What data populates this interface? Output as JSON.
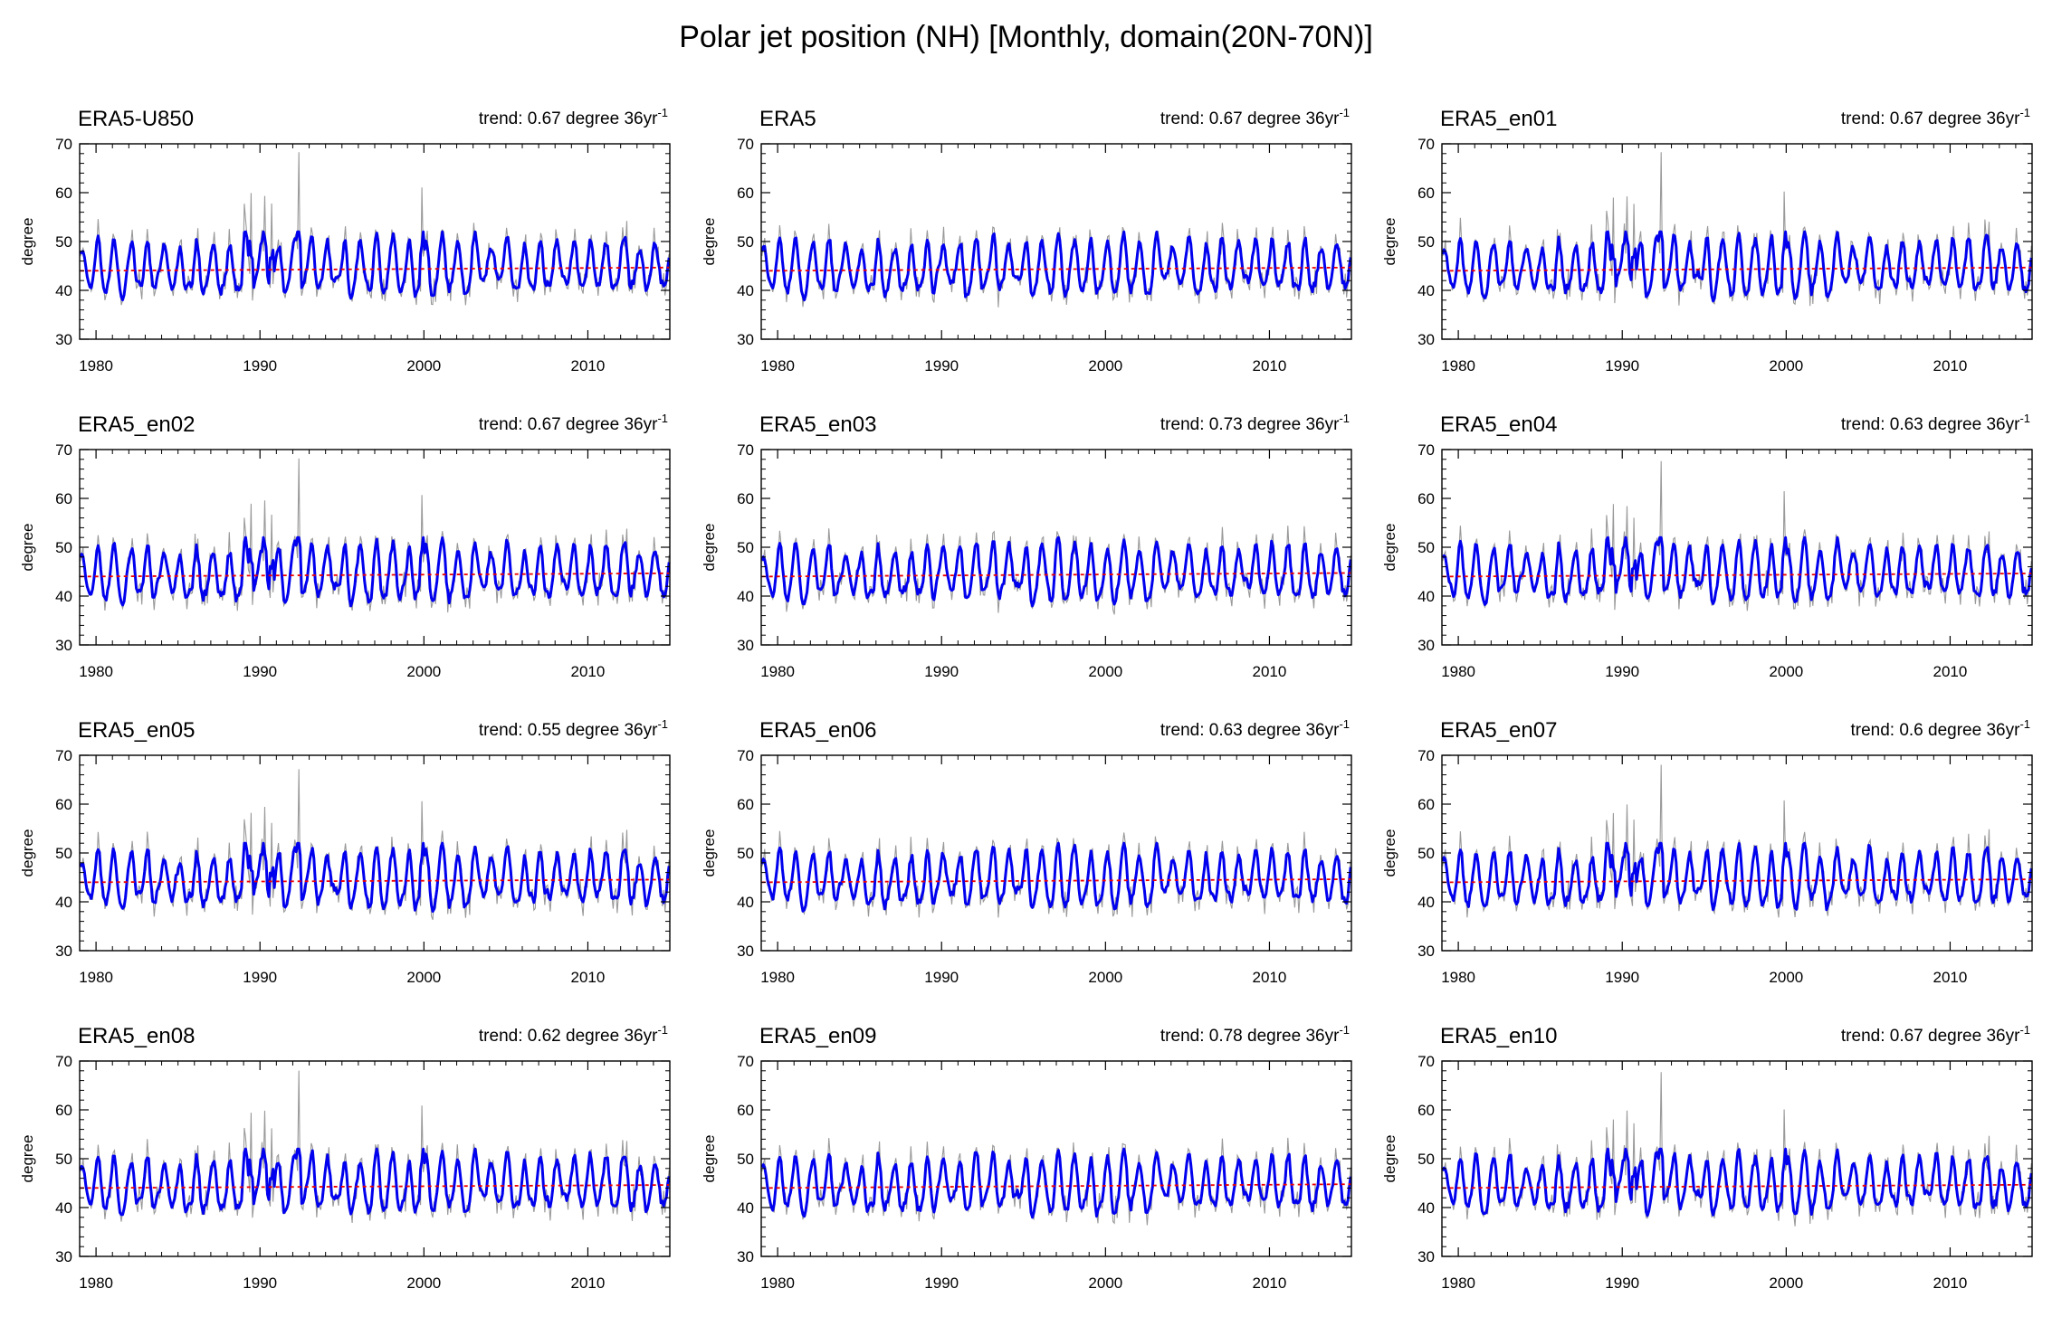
{
  "title": "Polar jet position (NH) [Monthly, domain(20N-70N)]",
  "colors": {
    "monthly": "#999999",
    "smoothed": "#0000ee",
    "trend_line": "#ee0000",
    "axes": "#000000"
  },
  "chart_data": [
    {
      "type": "line",
      "title": "ERA5-U850",
      "trend_label": "trend: 0.67 degree 36yr",
      "trend_exponent": "-1",
      "ylabel": "degree",
      "xlim": [
        1979,
        2015
      ],
      "ylim": [
        30,
        70
      ],
      "xticks": [
        1980,
        1990,
        2000,
        2010
      ],
      "yticks": [
        30,
        40,
        50,
        60,
        70
      ],
      "trend": 0.67,
      "seed": 1,
      "series": [
        {
          "name": ""
        }
      ]
    },
    {
      "type": "line",
      "title": "ERA5",
      "trend_label": "trend: 0.67 degree 36yr",
      "trend_exponent": "-1",
      "ylabel": "degree",
      "xlim": [
        1979,
        2015
      ],
      "ylim": [
        30,
        70
      ],
      "xticks": [
        1980,
        1990,
        2000,
        2010
      ],
      "yticks": [
        30,
        40,
        50,
        60,
        70
      ],
      "trend": 0.67,
      "seed": 2,
      "series": [
        {
          "name": ""
        }
      ]
    },
    {
      "type": "line",
      "title": "ERA5_en01",
      "trend_label": "trend: 0.67 degree 36yr",
      "trend_exponent": "-1",
      "ylabel": "degree",
      "xlim": [
        1979,
        2015
      ],
      "ylim": [
        30,
        70
      ],
      "xticks": [
        1980,
        1990,
        2000,
        2010
      ],
      "yticks": [
        30,
        40,
        50,
        60,
        70
      ],
      "trend": 0.67,
      "seed": 3,
      "series": [
        {
          "name": ""
        }
      ]
    },
    {
      "type": "line",
      "title": "ERA5_en02",
      "trend_label": "trend: 0.67 degree 36yr",
      "trend_exponent": "-1",
      "ylabel": "degree",
      "xlim": [
        1979,
        2015
      ],
      "ylim": [
        30,
        70
      ],
      "xticks": [
        1980,
        1990,
        2000,
        2010
      ],
      "yticks": [
        30,
        40,
        50,
        60,
        70
      ],
      "trend": 0.67,
      "seed": 4,
      "series": [
        {
          "name": ""
        }
      ]
    },
    {
      "type": "line",
      "title": "ERA5_en03",
      "trend_label": "trend: 0.73 degree 36yr",
      "trend_exponent": "-1",
      "ylabel": "degree",
      "xlim": [
        1979,
        2015
      ],
      "ylim": [
        30,
        70
      ],
      "xticks": [
        1980,
        1990,
        2000,
        2010
      ],
      "yticks": [
        30,
        40,
        50,
        60,
        70
      ],
      "trend": 0.73,
      "seed": 5,
      "series": [
        {
          "name": ""
        }
      ]
    },
    {
      "type": "line",
      "title": "ERA5_en04",
      "trend_label": "trend: 0.63 degree 36yr",
      "trend_exponent": "-1",
      "ylabel": "degree",
      "xlim": [
        1979,
        2015
      ],
      "ylim": [
        30,
        70
      ],
      "xticks": [
        1980,
        1990,
        2000,
        2010
      ],
      "yticks": [
        30,
        40,
        50,
        60,
        70
      ],
      "trend": 0.63,
      "seed": 6,
      "series": [
        {
          "name": ""
        }
      ]
    },
    {
      "type": "line",
      "title": "ERA5_en05",
      "trend_label": "trend: 0.55 degree 36yr",
      "trend_exponent": "-1",
      "ylabel": "degree",
      "xlim": [
        1979,
        2015
      ],
      "ylim": [
        30,
        70
      ],
      "xticks": [
        1980,
        1990,
        2000,
        2010
      ],
      "yticks": [
        30,
        40,
        50,
        60,
        70
      ],
      "trend": 0.55,
      "seed": 7,
      "series": [
        {
          "name": ""
        }
      ]
    },
    {
      "type": "line",
      "title": "ERA5_en06",
      "trend_label": "trend: 0.63 degree 36yr",
      "trend_exponent": "-1",
      "ylabel": "degree",
      "xlim": [
        1979,
        2015
      ],
      "ylim": [
        30,
        70
      ],
      "xticks": [
        1980,
        1990,
        2000,
        2010
      ],
      "yticks": [
        30,
        40,
        50,
        60,
        70
      ],
      "trend": 0.63,
      "seed": 8,
      "series": [
        {
          "name": ""
        }
      ]
    },
    {
      "type": "line",
      "title": "ERA5_en07",
      "trend_label": "trend: 0.6 degree 36yr",
      "trend_exponent": "-1",
      "ylabel": "degree",
      "xlim": [
        1979,
        2015
      ],
      "ylim": [
        30,
        70
      ],
      "xticks": [
        1980,
        1990,
        2000,
        2010
      ],
      "yticks": [
        30,
        40,
        50,
        60,
        70
      ],
      "trend": 0.6,
      "seed": 9,
      "series": [
        {
          "name": ""
        }
      ]
    },
    {
      "type": "line",
      "title": "ERA5_en08",
      "trend_label": "trend: 0.62 degree 36yr",
      "trend_exponent": "-1",
      "ylabel": "degree",
      "xlim": [
        1979,
        2015
      ],
      "ylim": [
        30,
        70
      ],
      "xticks": [
        1980,
        1990,
        2000,
        2010
      ],
      "yticks": [
        30,
        40,
        50,
        60,
        70
      ],
      "trend": 0.62,
      "seed": 10,
      "series": [
        {
          "name": ""
        }
      ]
    },
    {
      "type": "line",
      "title": "ERA5_en09",
      "trend_label": "trend: 0.78 degree 36yr",
      "trend_exponent": "-1",
      "ylabel": "degree",
      "xlim": [
        1979,
        2015
      ],
      "ylim": [
        30,
        70
      ],
      "xticks": [
        1980,
        1990,
        2000,
        2010
      ],
      "yticks": [
        30,
        40,
        50,
        60,
        70
      ],
      "trend": 0.78,
      "seed": 11,
      "series": [
        {
          "name": ""
        }
      ]
    },
    {
      "type": "line",
      "title": "ERA5_en10",
      "trend_label": "trend: 0.67 degree 36yr",
      "trend_exponent": "-1",
      "ylabel": "degree",
      "xlim": [
        1979,
        2015
      ],
      "ylim": [
        30,
        70
      ],
      "xticks": [
        1980,
        1990,
        2000,
        2010
      ],
      "yticks": [
        30,
        40,
        50,
        60,
        70
      ],
      "trend": 0.67,
      "seed": 12,
      "series": [
        {
          "name": ""
        }
      ]
    }
  ]
}
